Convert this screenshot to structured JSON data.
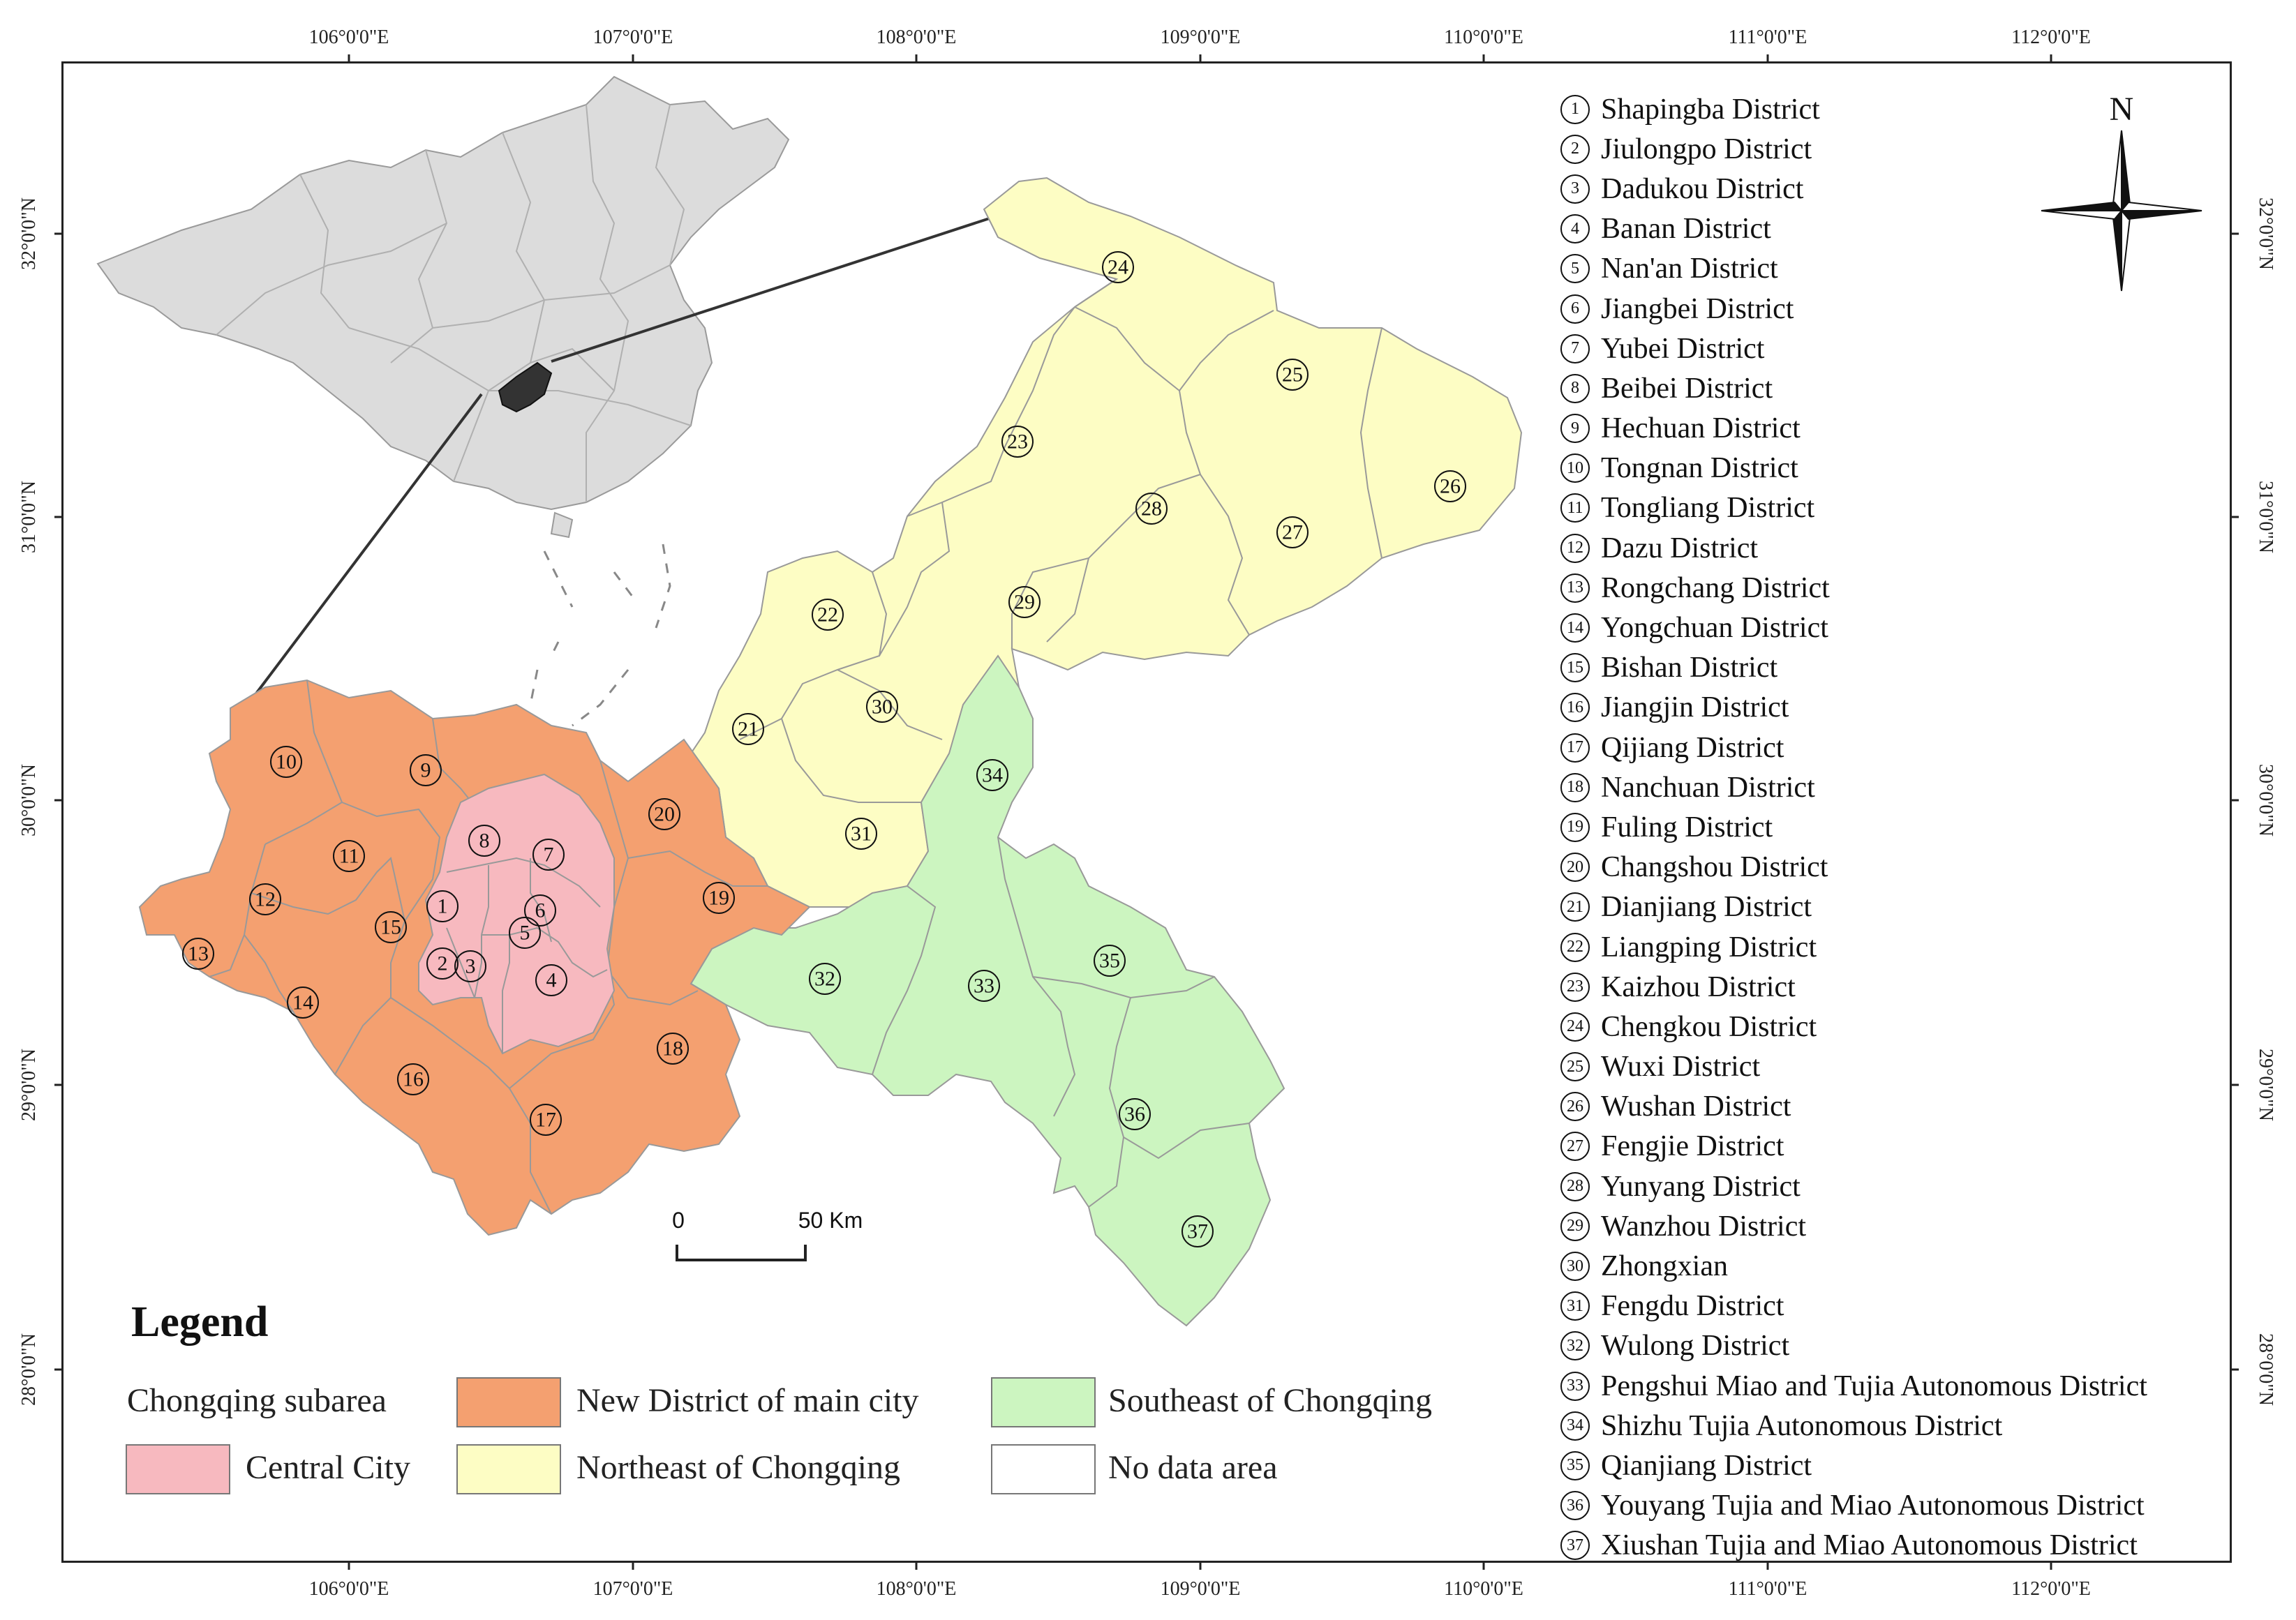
{
  "top_ticks": [
    "106°0'0\"E",
    "107°0'0\"E",
    "108°0'0\"E",
    "109°0'0\"E",
    "110°0'0\"E",
    "111°0'0\"E",
    "112°0'0\"E"
  ],
  "bottom_ticks": [
    "106°0'0\"E",
    "107°0'0\"E",
    "108°0'0\"E",
    "109°0'0\"E",
    "110°0'0\"E",
    "111°0'0\"E",
    "112°0'0\"E"
  ],
  "left_ticks": [
    "32°0'0\"N",
    "31°0'0\"N",
    "30°0'0\"N",
    "29°0'0\"N",
    "28°0'0\"N"
  ],
  "right_ticks": [
    "32°0'0\"N",
    "31°0'0\"N",
    "30°0'0\"N",
    "29°0'0\"N",
    "28°0'0\"N"
  ],
  "north_label": "N",
  "scale": {
    "start": "0",
    "end": "50 Km"
  },
  "legend": {
    "title": "Legend",
    "subtitle": "Chongqing subarea",
    "items": [
      {
        "label": "Central City",
        "color": "#f7b9bf"
      },
      {
        "label": "New District of main city",
        "color": "#f4a070"
      },
      {
        "label": "Northeast of Chongqing",
        "color": "#fdfdc4"
      },
      {
        "label": "Southeast of Chongqing",
        "color": "#ccf5c0"
      },
      {
        "label": "No data area",
        "color": "#ffffff"
      }
    ]
  },
  "colors": {
    "central": "#f7b9bf",
    "new_district": "#f4a070",
    "northeast": "#fdfdc4",
    "southeast": "#ccf5c0",
    "china": "#dcdcdc",
    "chongqing_inset": "#333333"
  },
  "districts": [
    {
      "num": "1",
      "name": "Shapingba District"
    },
    {
      "num": "2",
      "name": "Jiulongpo  District"
    },
    {
      "num": "3",
      "name": "Dadukou District"
    },
    {
      "num": "4",
      "name": "Banan District"
    },
    {
      "num": "5",
      "name": "Nan'an  District"
    },
    {
      "num": "6",
      "name": "Jiangbei  District"
    },
    {
      "num": "7",
      "name": "Yubei District"
    },
    {
      "num": "8",
      "name": "Beibei District"
    },
    {
      "num": "9",
      "name": "Hechuan  District"
    },
    {
      "num": "10",
      "name": "Tongnan District"
    },
    {
      "num": "11",
      "name": "Tongliang District"
    },
    {
      "num": "12",
      "name": "Dazu  District"
    },
    {
      "num": "13",
      "name": "Rongchang District"
    },
    {
      "num": "14",
      "name": "Yongchuan District"
    },
    {
      "num": "15",
      "name": "Bishan District"
    },
    {
      "num": "16",
      "name": "Jiangjin  District"
    },
    {
      "num": "17",
      "name": "Qijiang District"
    },
    {
      "num": "18",
      "name": "Nanchuan  District"
    },
    {
      "num": "19",
      "name": "Fuling  District"
    },
    {
      "num": "20",
      "name": "Changshou District"
    },
    {
      "num": "21",
      "name": "Dianjiang District"
    },
    {
      "num": "22",
      "name": "Liangping  District"
    },
    {
      "num": "23",
      "name": "Kaizhou  District"
    },
    {
      "num": "24",
      "name": "Chengkou District"
    },
    {
      "num": "25",
      "name": "Wuxi District"
    },
    {
      "num": "26",
      "name": "Wushan District"
    },
    {
      "num": "27",
      "name": "Fengjie District"
    },
    {
      "num": "28",
      "name": "Yunyang District"
    },
    {
      "num": "29",
      "name": "Wanzhou District"
    },
    {
      "num": "30",
      "name": "Zhongxian"
    },
    {
      "num": "31",
      "name": "Fengdu District"
    },
    {
      "num": "32",
      "name": "Wulong District"
    },
    {
      "num": "33",
      "name": "Pengshui Miao and Tujia Autonomous District"
    },
    {
      "num": "34",
      "name": "Shizhu Tujia Autonomous District"
    },
    {
      "num": "35",
      "name": "Qianjiang District"
    },
    {
      "num": "36",
      "name": "Youyang Tujia and Miao Autonomous District"
    },
    {
      "num": "37",
      "name": "Xiushan Tujia and Miao Autonomous District"
    }
  ]
}
